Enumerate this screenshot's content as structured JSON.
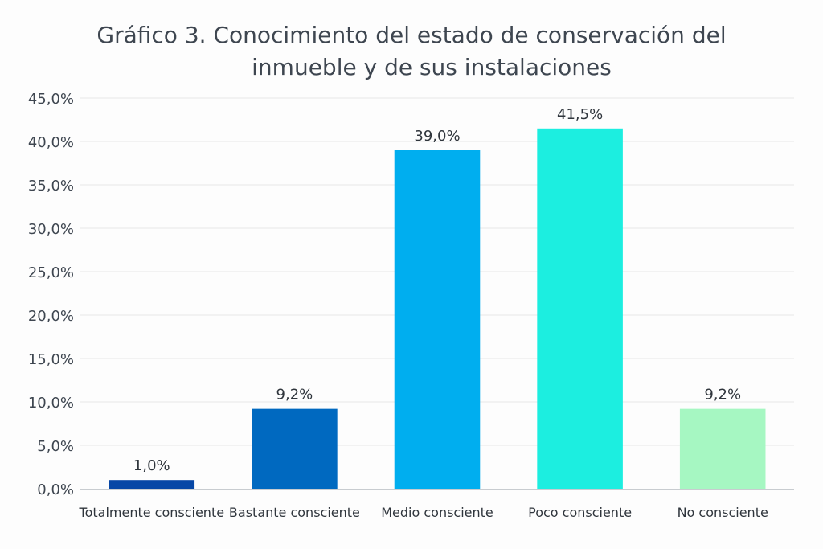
{
  "chart_data": {
    "type": "bar",
    "title_lines": [
      "Gráfico 3. Conocimiento del estado de conservación del",
      "inmueble y de sus instalaciones"
    ],
    "title": "Gráfico 3. Conocimiento del estado de conservación del inmueble y de sus instalaciones",
    "xlabel": "",
    "ylabel": "",
    "categories": [
      "Totalmente consciente",
      "Bastante consciente",
      "Medio consciente",
      "Poco consciente",
      "No consciente"
    ],
    "values": [
      1.0,
      9.2,
      39.0,
      41.5,
      9.2
    ],
    "data_labels": [
      "1,0%",
      "9,2%",
      "39,0%",
      "41,5%",
      "9,2%"
    ],
    "colors": [
      "#0747a6",
      "#0069c0",
      "#00aeef",
      "#1ceee0",
      "#a6f7c2"
    ],
    "ylim": [
      0,
      45
    ],
    "yticks": [
      0,
      5,
      10,
      15,
      20,
      25,
      30,
      35,
      40,
      45
    ],
    "ytick_labels": [
      "0,0%",
      "5,0%",
      "10,0%",
      "15,0%",
      "20,0%",
      "25,0%",
      "30,0%",
      "35,0%",
      "40,0%",
      "45,0%"
    ],
    "grid": true,
    "legend": "none"
  }
}
